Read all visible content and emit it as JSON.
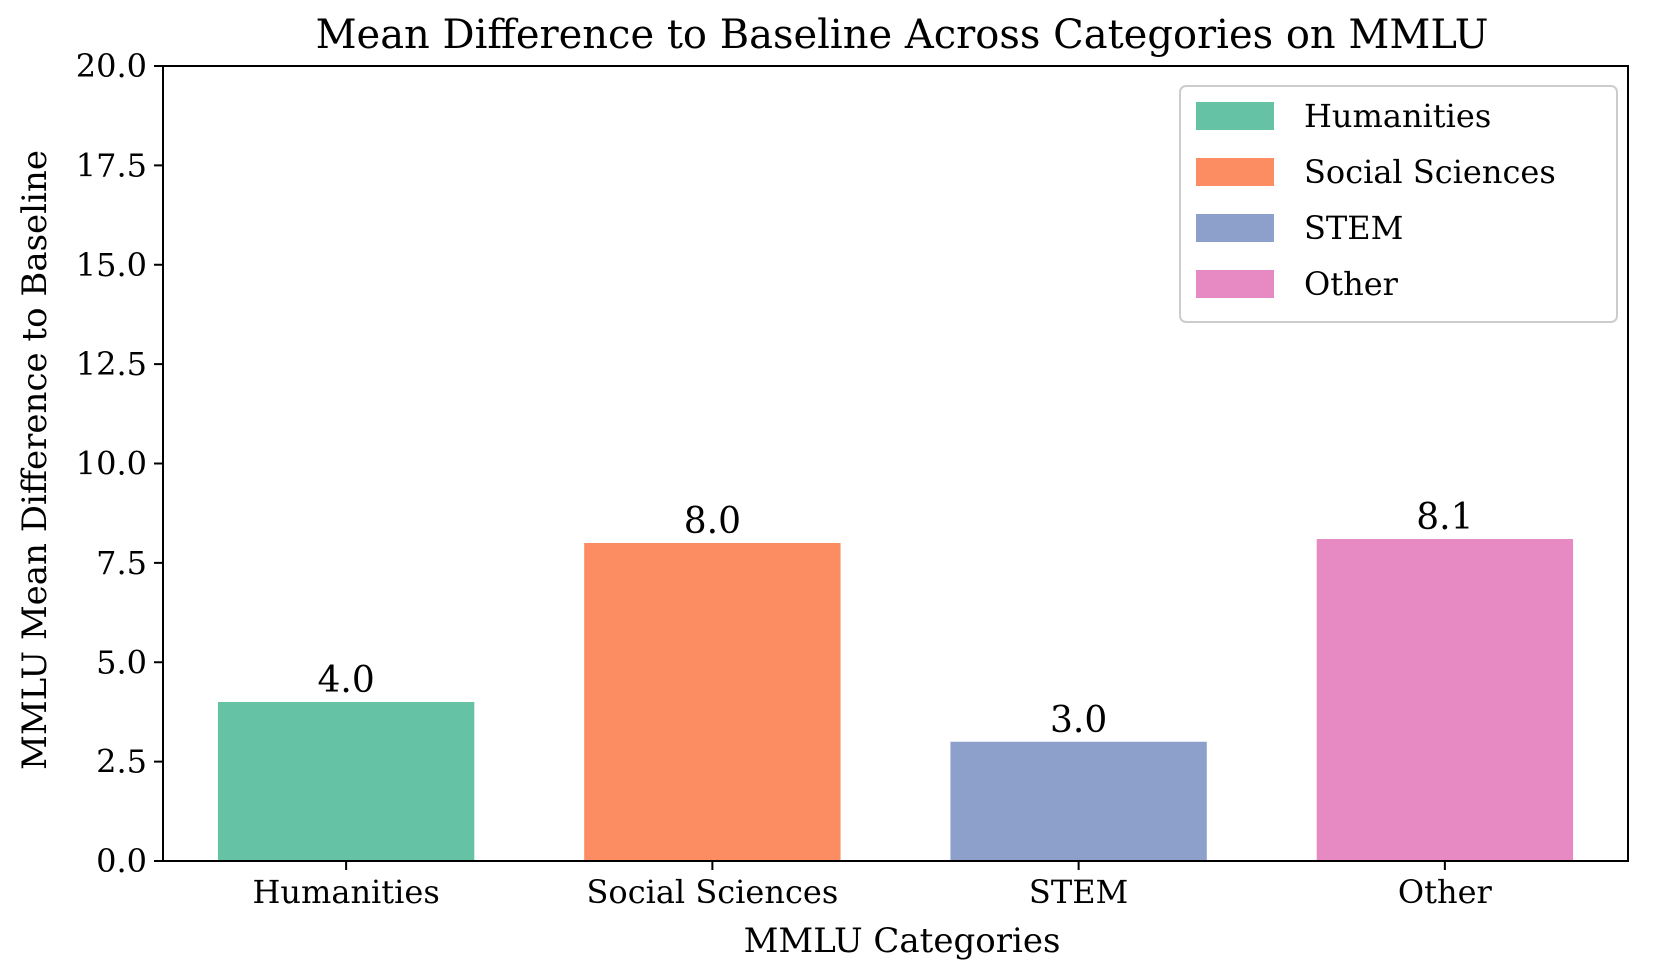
{
  "chart_data": {
    "type": "bar",
    "title": "Mean Difference to Baseline Across Categories on MMLU",
    "xlabel": "MMLU Categories",
    "ylabel": "MMLU Mean Difference to Baseline",
    "categories": [
      "Humanities",
      "Social Sciences",
      "STEM",
      "Other"
    ],
    "values": [
      4.0,
      8.0,
      3.0,
      8.1
    ],
    "value_labels": [
      "4.0",
      "8.0",
      "3.0",
      "8.1"
    ],
    "colors": [
      "#66c2a5",
      "#fc8d62",
      "#8da0cb",
      "#e78ac3"
    ],
    "ylim": [
      0,
      20
    ],
    "yticks": [
      0,
      2.5,
      5,
      7.5,
      10,
      12.5,
      15,
      17.5,
      20
    ],
    "ytick_labels": [
      "0.0",
      "2.5",
      "5.0",
      "7.5",
      "10.0",
      "12.5",
      "15.0",
      "17.5",
      "20.0"
    ],
    "grid": false,
    "legend": {
      "placement": "top-right",
      "entries": [
        "Humanities",
        "Social Sciences",
        "STEM",
        "Other"
      ]
    }
  }
}
